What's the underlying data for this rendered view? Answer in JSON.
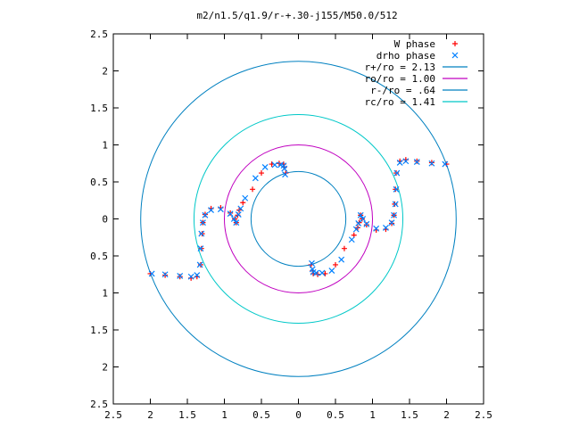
{
  "chart_data": {
    "type": "scatter",
    "title": "m2/n1.5/q1.9/r-+.30-j155/M50.0/512",
    "xlabel": "",
    "ylabel": "",
    "xlim": [
      -2.5,
      2.5
    ],
    "ylim": [
      -2.5,
      2.5
    ],
    "grid": false,
    "legend_position": "top-right",
    "x_ticks": [
      "2.5",
      "2",
      "1.5",
      "1",
      "0.5",
      "0",
      "0.5",
      "1",
      "1.5",
      "2",
      "2.5"
    ],
    "y_ticks": [
      "2.5",
      "2",
      "1.5",
      "1",
      "0.5",
      "0",
      "0.5",
      "1",
      "1.5",
      "2",
      "2.5"
    ],
    "legend": [
      {
        "label": "W phase",
        "color": "#ff0000",
        "marker": "plus"
      },
      {
        "label": "drho phase",
        "color": "#0080ff",
        "marker": "cross"
      },
      {
        "label": "r+/ro = 2.13",
        "color": "#0080c0",
        "marker": "line"
      },
      {
        "label": "ro/ro = 1.00",
        "color": "#c000c0",
        "marker": "line"
      },
      {
        "label": "r-/ro = .64",
        "color": "#0080c0",
        "marker": "line"
      },
      {
        "label": "rc/ro = 1.41",
        "color": "#00c8c8",
        "marker": "line"
      }
    ],
    "circles": [
      {
        "name": "r+/ro",
        "r": 2.13,
        "color": "#0080c0"
      },
      {
        "name": "ro/ro",
        "r": 1.0,
        "color": "#c000c0"
      },
      {
        "name": "r-/ro",
        "r": 0.64,
        "color": "#0080c0"
      },
      {
        "name": "rc/ro",
        "r": 1.41,
        "color": "#00c8c8"
      }
    ],
    "series": [
      {
        "name": "W phase",
        "color": "#ff0000",
        "marker": "plus",
        "x": [
          2.0,
          1.8,
          1.6,
          1.45,
          1.37,
          1.32,
          1.31,
          1.3,
          1.29,
          1.26,
          1.18,
          1.05,
          0.92,
          0.86,
          0.84,
          0.82,
          0.8,
          0.75,
          0.62,
          0.5,
          0.36,
          0.26,
          0.2,
          0.19,
          0.17,
          -2.0,
          -1.8,
          -1.6,
          -1.45,
          -1.37,
          -1.32,
          -1.31,
          -1.3,
          -1.29,
          -1.26,
          -1.18,
          -1.05,
          -0.92,
          -0.86,
          -0.84,
          -0.82,
          -0.8,
          -0.75,
          -0.62,
          -0.5,
          -0.36,
          -0.26,
          -0.2,
          -0.19,
          -0.17
        ],
        "y": [
          0.74,
          0.76,
          0.78,
          0.8,
          0.78,
          0.62,
          0.4,
          0.2,
          0.05,
          -0.06,
          -0.14,
          -0.15,
          -0.08,
          0.0,
          0.05,
          -0.05,
          -0.12,
          -0.22,
          -0.4,
          -0.62,
          -0.74,
          -0.75,
          -0.74,
          -0.7,
          -0.62,
          -0.74,
          -0.76,
          -0.78,
          -0.8,
          -0.78,
          -0.62,
          -0.4,
          -0.2,
          -0.05,
          0.06,
          0.14,
          0.15,
          0.08,
          0.0,
          -0.05,
          0.05,
          0.12,
          0.22,
          0.4,
          0.62,
          0.74,
          0.75,
          0.74,
          0.7,
          0.62
        ]
      },
      {
        "name": "drho phase",
        "color": "#0080ff",
        "marker": "cross",
        "x": [
          1.98,
          1.8,
          1.6,
          1.45,
          1.37,
          1.33,
          1.32,
          1.31,
          1.29,
          1.26,
          1.18,
          1.05,
          0.92,
          0.87,
          0.84,
          0.81,
          0.78,
          0.72,
          0.58,
          0.45,
          0.32,
          0.24,
          0.2,
          0.19,
          0.18,
          -1.98,
          -1.8,
          -1.6,
          -1.45,
          -1.37,
          -1.33,
          -1.32,
          -1.31,
          -1.29,
          -1.26,
          -1.18,
          -1.05,
          -0.92,
          -0.87,
          -0.84,
          -0.81,
          -0.78,
          -0.72,
          -0.58,
          -0.45,
          -0.32,
          -0.24,
          -0.2,
          -0.19,
          -0.18
        ],
        "y": [
          0.74,
          0.75,
          0.77,
          0.78,
          0.76,
          0.62,
          0.4,
          0.2,
          0.05,
          -0.05,
          -0.12,
          -0.13,
          -0.07,
          0.0,
          0.05,
          -0.06,
          -0.14,
          -0.28,
          -0.55,
          -0.7,
          -0.73,
          -0.73,
          -0.72,
          -0.68,
          -0.6,
          -0.74,
          -0.75,
          -0.77,
          -0.78,
          -0.76,
          -0.62,
          -0.4,
          -0.2,
          -0.05,
          0.05,
          0.12,
          0.13,
          0.07,
          0.0,
          -0.05,
          0.06,
          0.14,
          0.28,
          0.55,
          0.7,
          0.73,
          0.73,
          0.72,
          0.68,
          0.6
        ]
      }
    ]
  }
}
